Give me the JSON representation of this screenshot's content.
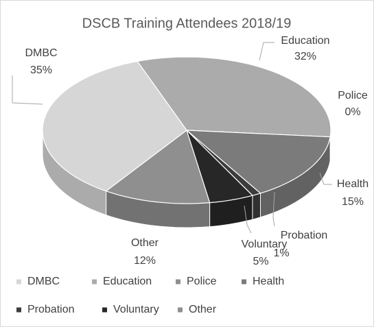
{
  "chart_data": {
    "type": "pie",
    "title": "DSCB Training Attendees 2018/19",
    "categories": [
      "DMBC",
      "Education",
      "Police",
      "Health",
      "Probation",
      "Voluntary",
      "Other"
    ],
    "values": [
      35,
      32,
      0,
      15,
      1,
      5,
      12
    ],
    "value_labels": [
      "35%",
      "32%",
      "0%",
      "15%",
      "1%",
      "5%",
      "12%"
    ],
    "colors": [
      "#d6d6d6",
      "#ababab",
      "#8e8e8e",
      "#7b7b7b",
      "#3c3c3c",
      "#272727",
      "#8f8f8f"
    ],
    "legend": "bottom",
    "style": "3d"
  }
}
